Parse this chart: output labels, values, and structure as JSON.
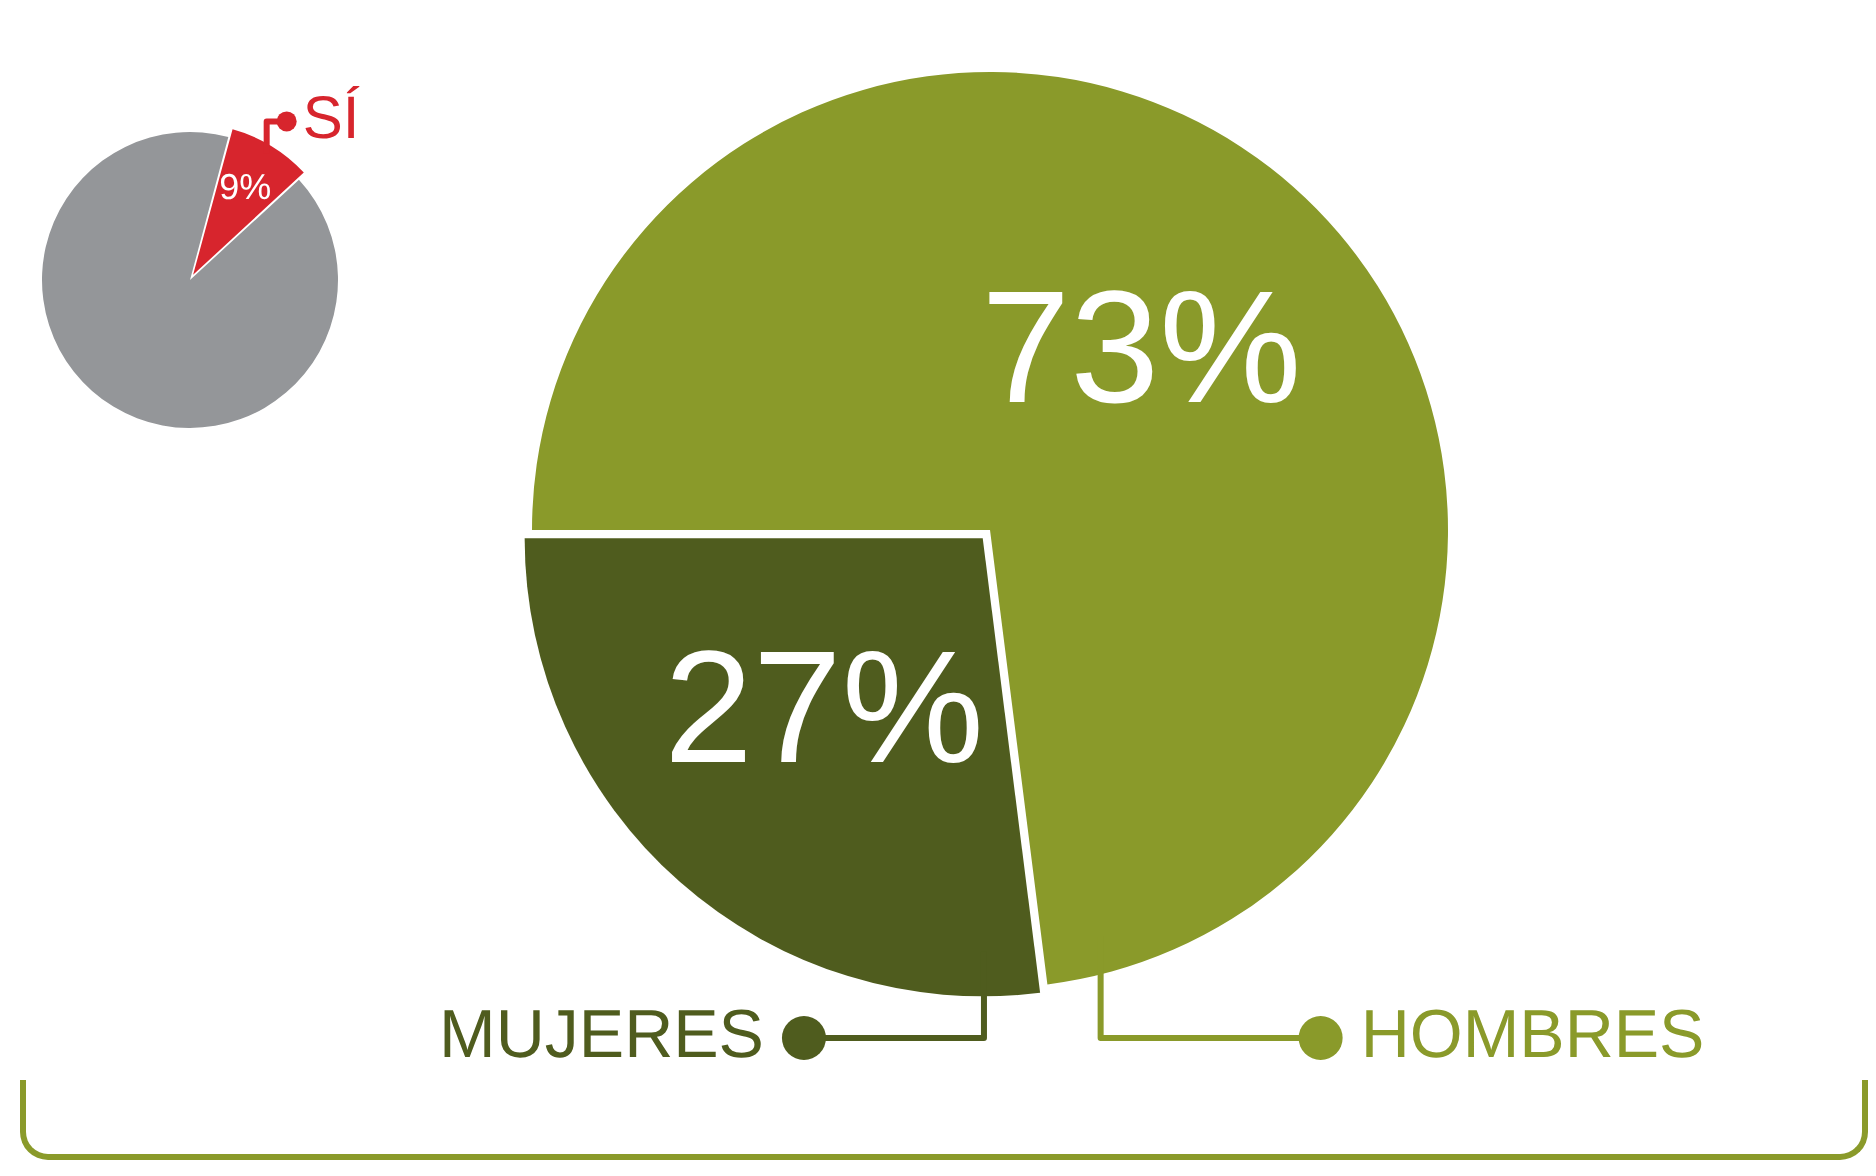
{
  "chart_data": [
    {
      "type": "pie",
      "categories": [
        "SÍ",
        null
      ],
      "values": [
        9,
        91
      ],
      "colors": [
        "#d7252d",
        "#949699"
      ],
      "value_labels": [
        "9%",
        null
      ]
    },
    {
      "type": "pie",
      "categories": [
        "HOMBRES",
        "MUJERES"
      ],
      "values": [
        73,
        27
      ],
      "colors": [
        "#8a9a2a",
        "#4f5c1e"
      ],
      "value_labels": [
        "73%",
        "27%"
      ]
    }
  ]
}
